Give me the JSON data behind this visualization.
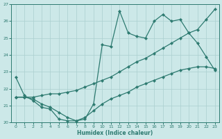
{
  "xlabel": "Humidex (Indice chaleur)",
  "xlim": [
    -0.5,
    23.5
  ],
  "ylim": [
    20,
    27
  ],
  "xticks": [
    0,
    1,
    2,
    3,
    4,
    5,
    6,
    7,
    8,
    9,
    10,
    11,
    12,
    13,
    14,
    15,
    16,
    17,
    18,
    19,
    20,
    21,
    22,
    23
  ],
  "yticks": [
    20,
    21,
    22,
    23,
    24,
    25,
    26,
    27
  ],
  "bg_color": "#cce8e8",
  "line_color": "#2d7a70",
  "grid_color": "#aacfcf",
  "line1_x": [
    0,
    1,
    2,
    3,
    4,
    5,
    6,
    7,
    8,
    9,
    10,
    11,
    12,
    13,
    14,
    15,
    16,
    17,
    18,
    19,
    20,
    21,
    22,
    23
  ],
  "line1_y": [
    22.7,
    21.6,
    21.3,
    20.9,
    20.8,
    20.2,
    20.1,
    20.1,
    20.2,
    21.1,
    24.6,
    24.5,
    26.6,
    25.3,
    25.1,
    25.0,
    26.0,
    26.4,
    26.0,
    26.1,
    25.3,
    24.7,
    23.9,
    23.1
  ],
  "line2_x": [
    0,
    1,
    2,
    3,
    4,
    5,
    6,
    7,
    8,
    9,
    10,
    11,
    12,
    13,
    14,
    15,
    16,
    17,
    18,
    19,
    20,
    21,
    22,
    23
  ],
  "line2_y": [
    21.5,
    21.5,
    21.5,
    21.6,
    21.7,
    21.7,
    21.8,
    21.9,
    22.1,
    22.3,
    22.5,
    22.7,
    23.0,
    23.3,
    23.6,
    23.8,
    24.1,
    24.4,
    24.7,
    25.0,
    25.3,
    25.5,
    26.1,
    26.7
  ],
  "line3_x": [
    0,
    1,
    2,
    3,
    4,
    5,
    6,
    7,
    8,
    9,
    10,
    11,
    12,
    13,
    14,
    15,
    16,
    17,
    18,
    19,
    20,
    21,
    22,
    23
  ],
  "line3_y": [
    21.5,
    21.5,
    21.4,
    21.1,
    20.9,
    20.6,
    20.3,
    20.1,
    20.3,
    20.7,
    21.1,
    21.4,
    21.6,
    21.8,
    22.1,
    22.3,
    22.5,
    22.7,
    22.9,
    23.1,
    23.2,
    23.3,
    23.3,
    23.2
  ]
}
